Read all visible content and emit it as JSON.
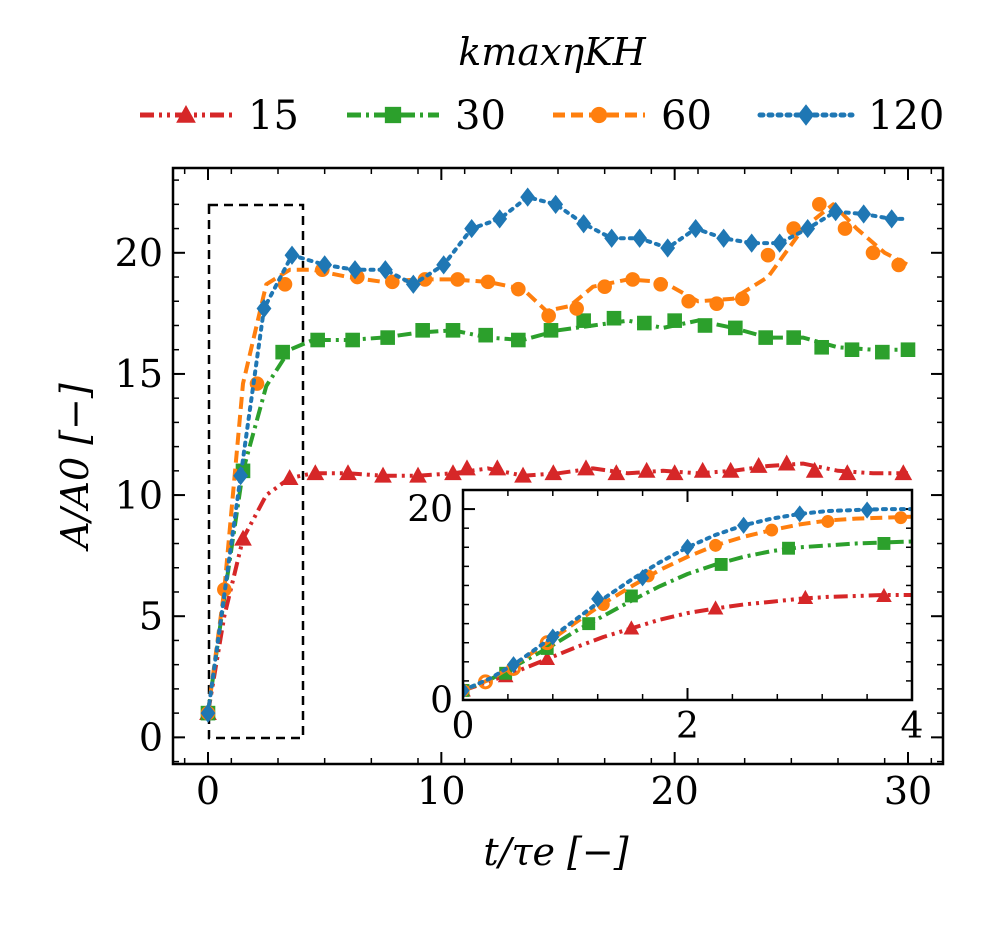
{
  "chart_data": [
    {
      "type": "line",
      "xlabel": "t/τe [−]",
      "ylabel": "A/A0 [−]",
      "xlim": [
        -1.5,
        31.5
      ],
      "ylim": [
        -1.1,
        23.5
      ],
      "xticks": [
        0,
        10,
        20,
        30
      ],
      "yticks": [
        0,
        5,
        10,
        15,
        20
      ],
      "xtick_labels": [
        "0",
        "10",
        "20",
        "30"
      ],
      "ytick_labels": [
        "0",
        "5",
        "10",
        "15",
        "20"
      ],
      "legend": {
        "title": "kmaxηKH",
        "placement": "top, outside plot, 4 columns",
        "labels": [
          "15",
          "30",
          "60",
          "120"
        ]
      },
      "zoom_box": {
        "x": [
          0,
          4
        ],
        "y": [
          0,
          22
        ],
        "style": "dashed black"
      },
      "series": [
        {
          "name": "15",
          "color": "#d62728",
          "marker": "triangle",
          "dash": "dash-dot-dot",
          "x": [
            0,
            0.7,
            1.5,
            2.5,
            3.5,
            4.5,
            6,
            7.5,
            9,
            10.5,
            12,
            13.5,
            15,
            16.5,
            18,
            19.5,
            21,
            22.5,
            24,
            25.5,
            27,
            28.5,
            30
          ],
          "y": [
            1.0,
            5.0,
            8.2,
            10.0,
            10.7,
            10.9,
            10.9,
            10.8,
            10.8,
            10.9,
            11.1,
            10.8,
            10.9,
            11.1,
            10.9,
            11.0,
            10.9,
            11.0,
            11.2,
            11.3,
            11.0,
            10.9,
            10.9
          ],
          "marker_x": [
            0,
            1.5,
            3.5,
            4.6,
            6.0,
            7.5,
            9,
            10.5,
            11.1,
            12.4,
            13.5,
            14.8,
            16.2,
            17.5,
            18.8,
            20,
            21.2,
            22.4,
            23.6,
            24.8,
            26,
            27.4,
            29.8
          ],
          "marker_y": [
            1.0,
            8.2,
            10.7,
            10.9,
            10.9,
            10.8,
            10.8,
            10.9,
            11.1,
            11.1,
            10.8,
            10.9,
            11.1,
            10.9,
            11.0,
            10.9,
            11.0,
            11.0,
            11.2,
            11.3,
            11.0,
            10.9,
            10.9
          ]
        },
        {
          "name": "30",
          "color": "#2ca02c",
          "marker": "square",
          "dash": "dash-dot",
          "x": [
            0,
            0.7,
            1.5,
            2.5,
            3.5,
            4.5,
            6,
            7.5,
            9,
            10.5,
            12,
            13.5,
            15,
            16.5,
            18,
            19.5,
            21,
            22.5,
            24,
            25.5,
            27,
            28.5,
            30
          ],
          "y": [
            1.0,
            5.8,
            11.0,
            14.5,
            16.0,
            16.4,
            16.4,
            16.5,
            16.7,
            16.8,
            16.5,
            16.4,
            16.8,
            17.0,
            17.2,
            16.9,
            17.2,
            16.9,
            16.5,
            16.5,
            16.1,
            16.0,
            16.0
          ],
          "marker_x": [
            0,
            1.5,
            3.2,
            4.7,
            6.2,
            7.7,
            9.2,
            10.5,
            11.9,
            13.3,
            14.7,
            16.1,
            17.4,
            18.7,
            20.0,
            21.3,
            22.6,
            23.9,
            25.1,
            26.3,
            27.6,
            28.9,
            30.0
          ],
          "marker_y": [
            1.0,
            11.0,
            15.9,
            16.4,
            16.4,
            16.5,
            16.8,
            16.8,
            16.6,
            16.4,
            16.8,
            17.2,
            17.3,
            17.1,
            17.2,
            17.0,
            16.9,
            16.5,
            16.5,
            16.1,
            16.0,
            15.9,
            16.0
          ]
        },
        {
          "name": "60",
          "color": "#ff7f0e",
          "marker": "circle",
          "dash": "dashed",
          "x": [
            0,
            0.7,
            1.5,
            2.5,
            3.5,
            4.5,
            6,
            7.5,
            9,
            10.5,
            12,
            13.5,
            14.5,
            15.5,
            16.5,
            18,
            19.5,
            21,
            22.5,
            24,
            25.5,
            26.8,
            27.8,
            29,
            30
          ],
          "y": [
            1.0,
            6.1,
            14.6,
            18.7,
            19.3,
            19.3,
            19.0,
            18.8,
            18.9,
            18.9,
            18.8,
            18.5,
            17.6,
            17.8,
            18.6,
            18.9,
            18.8,
            18.0,
            18.1,
            19.0,
            21.0,
            22.0,
            21.0,
            20.0,
            19.5
          ],
          "marker_x": [
            0,
            0.7,
            2.1,
            3.3,
            4.9,
            6.4,
            7.9,
            9.3,
            10.7,
            12.0,
            13.3,
            14.6,
            15.8,
            17.0,
            18.2,
            19.4,
            20.6,
            21.8,
            22.9,
            24.0,
            25.1,
            26.2,
            27.3,
            28.5,
            29.6
          ],
          "marker_y": [
            1.0,
            6.1,
            14.6,
            18.7,
            19.3,
            19.0,
            18.8,
            18.9,
            18.9,
            18.8,
            18.5,
            17.4,
            17.7,
            18.6,
            18.9,
            18.7,
            18.0,
            17.9,
            18.1,
            19.9,
            21.0,
            22.0,
            21.0,
            20.0,
            19.5
          ]
        },
        {
          "name": "120",
          "color": "#1f77b4",
          "marker": "diamond",
          "dash": "dotted",
          "x": [
            0,
            1.4,
            2.4,
            3.6,
            5.0,
            6.3,
            7.6,
            8.8,
            10.1,
            11.3,
            12.5,
            13.7,
            14.9,
            16.1,
            17.3,
            18.5,
            19.7,
            20.9,
            22.1,
            23.3,
            24.5,
            25.7,
            26.9,
            28.1,
            29.3,
            30.0
          ],
          "y": [
            1.0,
            10.8,
            17.7,
            19.9,
            19.5,
            19.3,
            19.3,
            18.7,
            19.5,
            21.0,
            21.4,
            22.3,
            22.0,
            21.2,
            20.6,
            20.6,
            20.2,
            21.0,
            20.6,
            20.4,
            20.4,
            21.0,
            21.7,
            21.6,
            21.4,
            21.4
          ],
          "marker_x": [
            0,
            1.4,
            2.4,
            3.6,
            5.0,
            6.3,
            7.6,
            8.8,
            10.1,
            11.3,
            12.5,
            13.7,
            14.9,
            16.1,
            17.3,
            18.5,
            19.7,
            20.9,
            22.1,
            23.3,
            24.5,
            25.7,
            26.9,
            28.1,
            29.3
          ],
          "marker_y": [
            1.0,
            10.8,
            17.7,
            19.9,
            19.5,
            19.3,
            19.3,
            18.7,
            19.5,
            21.0,
            21.4,
            22.3,
            22.0,
            21.2,
            20.6,
            20.6,
            20.2,
            21.0,
            20.6,
            20.4,
            20.4,
            21.0,
            21.7,
            21.6,
            21.4
          ]
        }
      ]
    },
    {
      "type": "line",
      "name": "inset",
      "xlim": [
        0,
        4
      ],
      "ylim": [
        0,
        22
      ],
      "xticks": [
        0,
        2,
        4
      ],
      "yticks": [
        0,
        20
      ],
      "xtick_labels": [
        "0",
        "2",
        "4"
      ],
      "ytick_labels": [
        "0",
        "20"
      ],
      "series": [
        {
          "name": "15",
          "color": "#d62728",
          "marker": "triangle",
          "dash": "dash-dot-dot",
          "x": [
            0,
            0.25,
            0.5,
            0.75,
            1.0,
            1.25,
            1.5,
            1.75,
            2.0,
            2.25,
            2.5,
            2.75,
            3.0,
            3.25,
            3.5,
            3.75,
            4.0
          ],
          "y": [
            1.0,
            2.0,
            3.1,
            4.3,
            5.5,
            6.6,
            7.5,
            8.4,
            9.1,
            9.6,
            10.0,
            10.3,
            10.6,
            10.8,
            10.9,
            11.0,
            11.0
          ],
          "marker_x": [
            0,
            0.38,
            0.75,
            1.5,
            2.25,
            3.05,
            3.75
          ],
          "marker_y": [
            1.0,
            2.5,
            4.3,
            7.5,
            9.6,
            10.7,
            10.9
          ]
        },
        {
          "name": "30",
          "color": "#2ca02c",
          "marker": "square",
          "dash": "dash-dot",
          "x": [
            0,
            0.25,
            0.5,
            0.75,
            1.0,
            1.25,
            1.5,
            1.75,
            2.0,
            2.25,
            2.5,
            2.75,
            3.0,
            3.25,
            3.5,
            3.75,
            4.0
          ],
          "y": [
            1.0,
            2.2,
            3.8,
            5.4,
            7.2,
            8.8,
            10.4,
            11.9,
            13.2,
            14.2,
            15.0,
            15.6,
            16.0,
            16.2,
            16.4,
            16.5,
            16.6
          ],
          "marker_x": [
            0,
            0.38,
            0.75,
            1.12,
            1.5,
            2.3,
            2.9,
            3.75
          ],
          "marker_y": [
            1.0,
            2.8,
            5.4,
            8.0,
            10.9,
            14.2,
            15.9,
            16.4
          ]
        },
        {
          "name": "60",
          "color": "#ff7f0e",
          "marker": "circle",
          "dash": "dashed",
          "x": [
            0,
            0.25,
            0.5,
            0.75,
            1.0,
            1.25,
            1.5,
            1.75,
            2.0,
            2.25,
            2.5,
            2.75,
            3.0,
            3.25,
            3.5,
            3.75,
            4.0
          ],
          "y": [
            1.0,
            2.2,
            4.0,
            6.0,
            8.1,
            10.1,
            11.9,
            13.6,
            15.0,
            16.2,
            17.1,
            17.8,
            18.4,
            18.8,
            19.0,
            19.1,
            19.2
          ],
          "marker_x": [
            0,
            0.2,
            0.45,
            0.75,
            1.25,
            1.65,
            2.25,
            2.75,
            3.25,
            3.9
          ],
          "marker_y": [
            1.0,
            1.9,
            3.3,
            6.0,
            10.0,
            13.0,
            16.2,
            17.8,
            18.7,
            19.1
          ]
        },
        {
          "name": "120",
          "color": "#1f77b4",
          "marker": "diamond",
          "dash": "dotted",
          "x": [
            0,
            0.25,
            0.5,
            0.75,
            1.0,
            1.25,
            1.5,
            1.75,
            2.0,
            2.25,
            2.5,
            2.75,
            3.0,
            3.25,
            3.5,
            3.75,
            4.0
          ],
          "y": [
            1.0,
            2.3,
            4.1,
            6.2,
            8.4,
            10.6,
            12.6,
            14.4,
            16.0,
            17.3,
            18.3,
            19.0,
            19.5,
            19.8,
            19.9,
            20.0,
            20.0
          ],
          "marker_x": [
            0,
            0.45,
            0.8,
            1.2,
            1.6,
            2.0,
            2.5,
            3.0,
            3.6
          ],
          "marker_y": [
            1.0,
            3.7,
            6.6,
            10.6,
            12.8,
            16.0,
            18.3,
            19.5,
            19.9
          ]
        }
      ]
    }
  ]
}
